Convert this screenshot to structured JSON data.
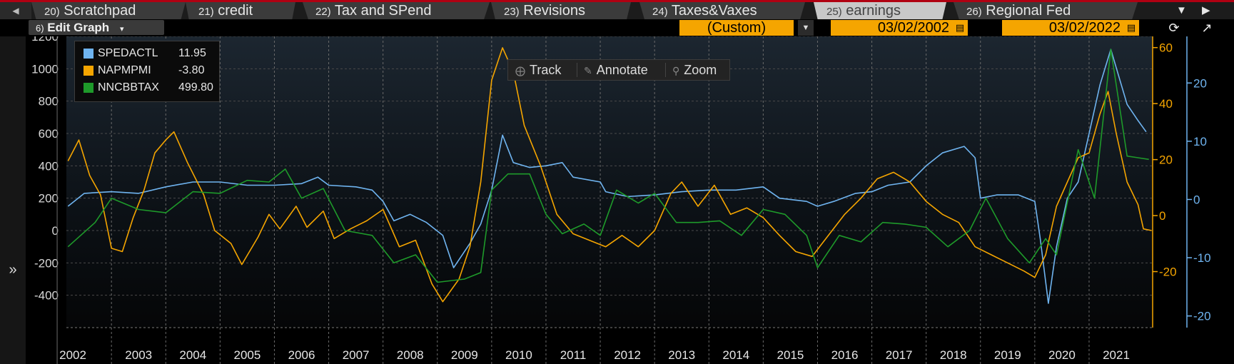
{
  "tabs": [
    {
      "num": "20)",
      "label": "Scratchpad",
      "active": false
    },
    {
      "num": "21)",
      "label": "credit",
      "active": false
    },
    {
      "num": "22)",
      "label": "Tax and SPend",
      "active": false
    },
    {
      "num": "23)",
      "label": "Revisions",
      "active": false
    },
    {
      "num": "24)",
      "label": "Taxes&Vaxes",
      "active": false
    },
    {
      "num": "25)",
      "label": "earnings",
      "active": true
    },
    {
      "num": "26)",
      "label": "Regional Fed",
      "active": false
    }
  ],
  "toolbar": {
    "edit_graph_num": "6)",
    "edit_graph_label": "Edit Graph",
    "period": "(Custom)",
    "start_date": "03/02/2002",
    "end_date": "03/02/2022"
  },
  "chart_tools": {
    "track": "Track",
    "annotate": "Annotate",
    "zoom": "Zoom"
  },
  "colors": {
    "SPEDACTL": "#6fb4f0",
    "NAPMPMI": "#f5a500",
    "NNCBBTAX": "#1e9a2a",
    "grid": "#4a4a4a",
    "background": "#000000"
  },
  "legend": [
    {
      "name": "SPEDACTL",
      "value": "11.95"
    },
    {
      "name": "NAPMPMI",
      "value": "-3.80"
    },
    {
      "name": "NNCBBTAX",
      "value": "499.80"
    }
  ],
  "chart_data": {
    "type": "line",
    "grid": true,
    "legend_position": "top-left",
    "x_ticks": [
      "2002",
      "2003",
      "2004",
      "2005",
      "2006",
      "2007",
      "2008",
      "2009",
      "2010",
      "2011",
      "2012",
      "2013",
      "2014",
      "2015",
      "2016",
      "2017",
      "2018",
      "2019",
      "2020",
      "2021"
    ],
    "xlim": [
      2002.17,
      2022.17
    ],
    "axes": {
      "left": {
        "ticks": [
          "1200",
          "1000",
          "800",
          "600",
          "400",
          "200",
          "0",
          "-200",
          "-400"
        ],
        "ylim": [
          -600,
          1200
        ],
        "color": "#d8d8d8"
      },
      "right_orange": {
        "ticks": [
          "60",
          "40",
          "20",
          "0",
          "-20"
        ],
        "ylim": [
          -40,
          64
        ],
        "color": "#f5a500"
      },
      "right_blue": {
        "ticks": [
          "20",
          "10",
          "0",
          "-10",
          "-20"
        ],
        "ylim": [
          -22,
          28
        ],
        "color": "#6fb4f0"
      }
    },
    "series": [
      {
        "name": "SPEDACTL",
        "axis": "left",
        "points": [
          [
            2002.2,
            150
          ],
          [
            2002.5,
            230
          ],
          [
            2003.0,
            240
          ],
          [
            2003.5,
            230
          ],
          [
            2004.0,
            270
          ],
          [
            2004.5,
            300
          ],
          [
            2005.0,
            300
          ],
          [
            2005.5,
            280
          ],
          [
            2006.0,
            280
          ],
          [
            2006.5,
            290
          ],
          [
            2006.8,
            330
          ],
          [
            2007.0,
            280
          ],
          [
            2007.5,
            270
          ],
          [
            2007.8,
            250
          ],
          [
            2008.0,
            180
          ],
          [
            2008.2,
            60
          ],
          [
            2008.5,
            100
          ],
          [
            2008.8,
            50
          ],
          [
            2009.1,
            -30
          ],
          [
            2009.3,
            -230
          ],
          [
            2009.6,
            -80
          ],
          [
            2009.8,
            40
          ],
          [
            2010.0,
            250
          ],
          [
            2010.2,
            590
          ],
          [
            2010.4,
            420
          ],
          [
            2010.7,
            390
          ],
          [
            2011.0,
            400
          ],
          [
            2011.3,
            420
          ],
          [
            2011.5,
            330
          ],
          [
            2012.0,
            300
          ],
          [
            2012.1,
            240
          ],
          [
            2012.5,
            210
          ],
          [
            2013.0,
            220
          ],
          [
            2013.5,
            240
          ],
          [
            2014.0,
            250
          ],
          [
            2014.5,
            250
          ],
          [
            2015.0,
            270
          ],
          [
            2015.3,
            200
          ],
          [
            2015.8,
            180
          ],
          [
            2016.0,
            150
          ],
          [
            2016.3,
            180
          ],
          [
            2016.7,
            230
          ],
          [
            2017.0,
            240
          ],
          [
            2017.3,
            280
          ],
          [
            2017.7,
            300
          ],
          [
            2018.0,
            400
          ],
          [
            2018.3,
            480
          ],
          [
            2018.7,
            520
          ],
          [
            2018.9,
            450
          ],
          [
            2019.0,
            200
          ],
          [
            2019.3,
            220
          ],
          [
            2019.7,
            220
          ],
          [
            2020.0,
            180
          ],
          [
            2020.1,
            -50
          ],
          [
            2020.25,
            -450
          ],
          [
            2020.4,
            -100
          ],
          [
            2020.6,
            200
          ],
          [
            2020.8,
            300
          ],
          [
            2021.0,
            600
          ],
          [
            2021.2,
            900
          ],
          [
            2021.4,
            1120
          ],
          [
            2021.55,
            950
          ],
          [
            2021.7,
            780
          ],
          [
            2021.9,
            680
          ],
          [
            2022.05,
            610
          ]
        ]
      },
      {
        "name": "NAPMPMI",
        "axis": "left",
        "points": [
          [
            2002.2,
            430
          ],
          [
            2002.4,
            560
          ],
          [
            2002.6,
            340
          ],
          [
            2002.8,
            220
          ],
          [
            2003.0,
            -110
          ],
          [
            2003.2,
            -130
          ],
          [
            2003.4,
            80
          ],
          [
            2003.6,
            250
          ],
          [
            2003.8,
            480
          ],
          [
            2004.0,
            560
          ],
          [
            2004.15,
            610
          ],
          [
            2004.4,
            420
          ],
          [
            2004.7,
            220
          ],
          [
            2004.9,
            0
          ],
          [
            2005.2,
            -80
          ],
          [
            2005.4,
            -210
          ],
          [
            2005.7,
            -40
          ],
          [
            2005.9,
            100
          ],
          [
            2006.1,
            10
          ],
          [
            2006.4,
            150
          ],
          [
            2006.6,
            20
          ],
          [
            2006.9,
            120
          ],
          [
            2007.1,
            -50
          ],
          [
            2007.4,
            10
          ],
          [
            2007.7,
            60
          ],
          [
            2008.0,
            130
          ],
          [
            2008.3,
            -100
          ],
          [
            2008.6,
            -60
          ],
          [
            2008.9,
            -330
          ],
          [
            2009.1,
            -440
          ],
          [
            2009.4,
            -300
          ],
          [
            2009.6,
            -100
          ],
          [
            2009.8,
            300
          ],
          [
            2010.0,
            930
          ],
          [
            2010.2,
            1130
          ],
          [
            2010.4,
            980
          ],
          [
            2010.6,
            650
          ],
          [
            2010.9,
            400
          ],
          [
            2011.2,
            100
          ],
          [
            2011.5,
            -20
          ],
          [
            2011.8,
            -60
          ],
          [
            2012.1,
            -100
          ],
          [
            2012.4,
            -30
          ],
          [
            2012.7,
            -100
          ],
          [
            2013.0,
            0
          ],
          [
            2013.3,
            230
          ],
          [
            2013.5,
            300
          ],
          [
            2013.8,
            150
          ],
          [
            2014.1,
            280
          ],
          [
            2014.4,
            100
          ],
          [
            2014.7,
            140
          ],
          [
            2015.0,
            80
          ],
          [
            2015.3,
            -30
          ],
          [
            2015.6,
            -130
          ],
          [
            2015.9,
            -160
          ],
          [
            2016.2,
            -30
          ],
          [
            2016.5,
            100
          ],
          [
            2016.8,
            200
          ],
          [
            2017.1,
            320
          ],
          [
            2017.4,
            360
          ],
          [
            2017.7,
            300
          ],
          [
            2018.0,
            180
          ],
          [
            2018.3,
            100
          ],
          [
            2018.6,
            50
          ],
          [
            2018.9,
            -100
          ],
          [
            2019.2,
            -150
          ],
          [
            2019.5,
            -200
          ],
          [
            2019.8,
            -250
          ],
          [
            2020.0,
            -290
          ],
          [
            2020.2,
            -150
          ],
          [
            2020.4,
            150
          ],
          [
            2020.6,
            300
          ],
          [
            2020.8,
            450
          ],
          [
            2021.0,
            480
          ],
          [
            2021.2,
            720
          ],
          [
            2021.35,
            860
          ],
          [
            2021.5,
            600
          ],
          [
            2021.7,
            300
          ],
          [
            2021.9,
            160
          ],
          [
            2022.0,
            10
          ],
          [
            2022.15,
            0
          ]
        ]
      },
      {
        "name": "NNCBBTAX",
        "axis": "left",
        "points": [
          [
            2002.2,
            -100
          ],
          [
            2002.7,
            50
          ],
          [
            2003.0,
            200
          ],
          [
            2003.5,
            130
          ],
          [
            2004.0,
            110
          ],
          [
            2004.5,
            240
          ],
          [
            2005.0,
            230
          ],
          [
            2005.5,
            310
          ],
          [
            2005.9,
            300
          ],
          [
            2006.2,
            380
          ],
          [
            2006.5,
            200
          ],
          [
            2006.9,
            260
          ],
          [
            2007.3,
            0
          ],
          [
            2007.8,
            -30
          ],
          [
            2008.2,
            -200
          ],
          [
            2008.6,
            -150
          ],
          [
            2009.0,
            -320
          ],
          [
            2009.5,
            -300
          ],
          [
            2009.8,
            -260
          ],
          [
            2010.0,
            250
          ],
          [
            2010.3,
            350
          ],
          [
            2010.7,
            350
          ],
          [
            2011.0,
            100
          ],
          [
            2011.3,
            -20
          ],
          [
            2011.7,
            40
          ],
          [
            2012.0,
            -30
          ],
          [
            2012.3,
            250
          ],
          [
            2012.7,
            170
          ],
          [
            2013.0,
            230
          ],
          [
            2013.4,
            50
          ],
          [
            2013.8,
            50
          ],
          [
            2014.2,
            60
          ],
          [
            2014.6,
            -30
          ],
          [
            2015.0,
            130
          ],
          [
            2015.4,
            100
          ],
          [
            2015.8,
            -30
          ],
          [
            2016.0,
            -230
          ],
          [
            2016.4,
            -30
          ],
          [
            2016.8,
            -70
          ],
          [
            2017.2,
            50
          ],
          [
            2017.6,
            40
          ],
          [
            2018.0,
            20
          ],
          [
            2018.4,
            -100
          ],
          [
            2018.8,
            0
          ],
          [
            2019.1,
            200
          ],
          [
            2019.5,
            -50
          ],
          [
            2019.9,
            -200
          ],
          [
            2020.2,
            -50
          ],
          [
            2020.4,
            -150
          ],
          [
            2020.8,
            500
          ],
          [
            2021.1,
            200
          ],
          [
            2021.4,
            1120
          ],
          [
            2021.7,
            460
          ],
          [
            2021.9,
            450
          ],
          [
            2022.1,
            440
          ]
        ]
      }
    ]
  }
}
